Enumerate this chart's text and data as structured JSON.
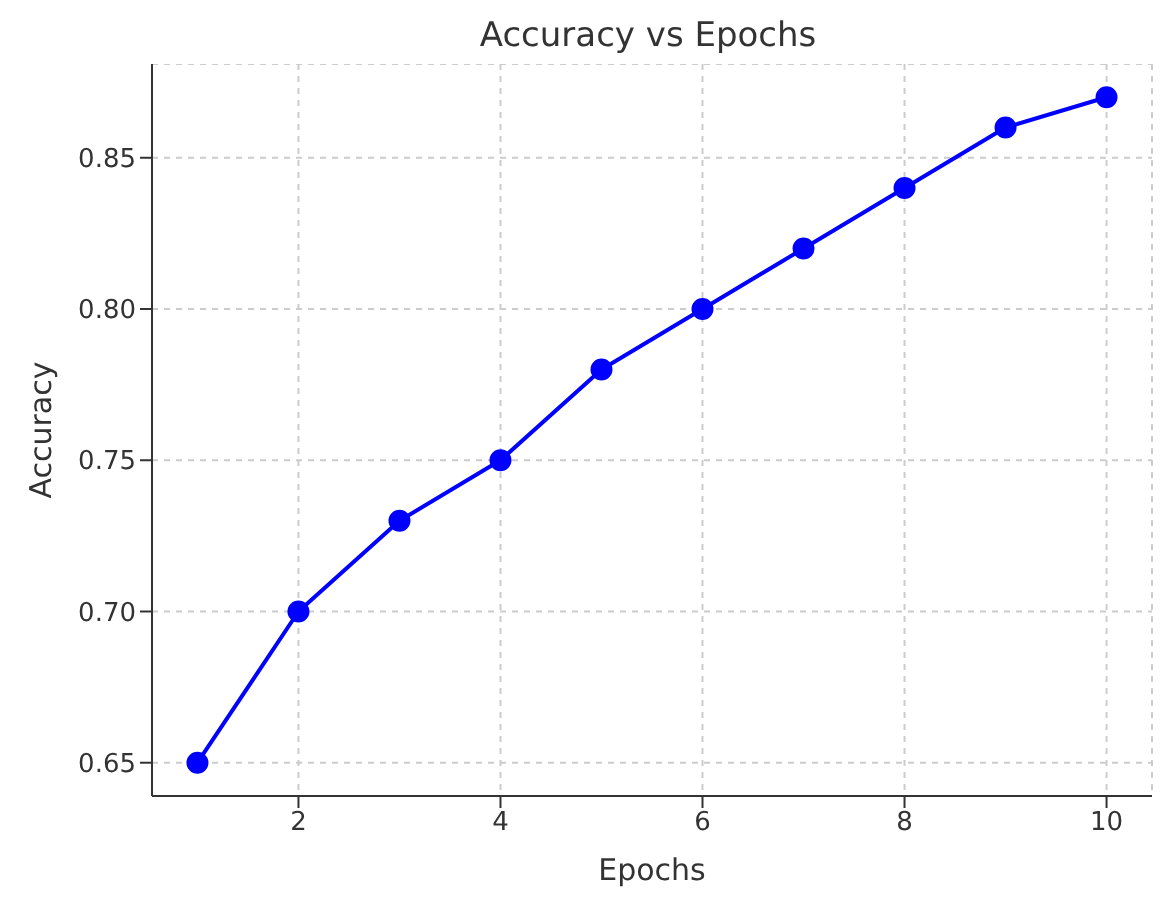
{
  "chart_data": {
    "type": "line",
    "title": "Accuracy vs Epochs",
    "xlabel": "Epochs",
    "ylabel": "Accuracy",
    "x": [
      1,
      2,
      3,
      4,
      5,
      6,
      7,
      8,
      9,
      10
    ],
    "series": [
      {
        "color": "#0000ff",
        "values": [
          0.65,
          0.7,
          0.73,
          0.75,
          0.78,
          0.8,
          0.82,
          0.84,
          0.86,
          0.87
        ]
      }
    ],
    "xlim": [
      0.55,
      10.45
    ],
    "xticks": [
      2,
      4,
      6,
      8,
      10
    ],
    "ylim": [
      0.639,
      0.881
    ],
    "yticks": [
      {
        "value": 0.65,
        "label": "0.65"
      },
      {
        "value": 0.7,
        "label": "0.70"
      },
      {
        "value": 0.75,
        "label": "0.75"
      },
      {
        "value": 0.8,
        "label": "0.80"
      },
      {
        "value": 0.85,
        "label": "0.85"
      }
    ],
    "grid": true,
    "marker": "circle",
    "line_style": "solid"
  }
}
